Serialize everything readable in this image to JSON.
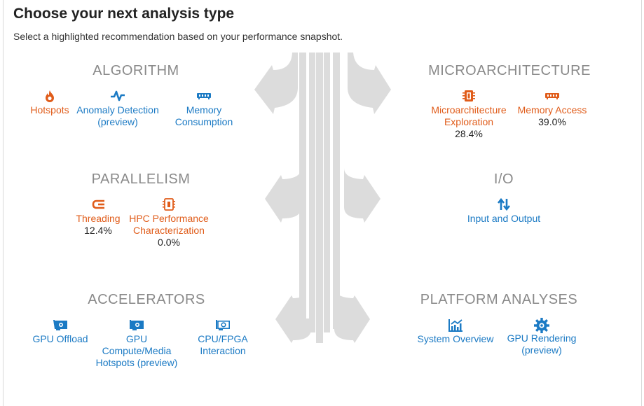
{
  "header": {
    "title": "Choose your next analysis type",
    "subtitle": "Select a highlighted recommendation based on your performance snapshot."
  },
  "colors": {
    "recommended": "#e05c1a",
    "standard": "#1b7ac4",
    "section": "#8a8a8a",
    "flow": "#dcdcdc"
  },
  "sections": {
    "algorithm": "ALGORITHM",
    "microarchitecture": "MICROARCHITECTURE",
    "parallelism": "PARALLELISM",
    "io": "I/O",
    "accelerators": "ACCELERATORS",
    "platform": "PLATFORM ANALYSES"
  },
  "items": {
    "hotspots": {
      "label": "Hotspots",
      "icon": "flame-icon"
    },
    "anomaly": {
      "label": "Anomaly Detection (preview)",
      "icon": "pulse-icon"
    },
    "memory_consumption": {
      "label": "Memory Consumption",
      "icon": "memory-chip-icon"
    },
    "microarch": {
      "label": "Microarchitecture Exploration",
      "value": "28.4%",
      "icon": "processor-icon"
    },
    "memory_access": {
      "label": "Memory Access",
      "value": "39.0%",
      "icon": "memory-chip-icon"
    },
    "threading": {
      "label": "Threading",
      "value": "12.4%",
      "icon": "threads-icon"
    },
    "hpc": {
      "label": "HPC Performance Characterization",
      "value": "0.0%",
      "icon": "processor-icon"
    },
    "io": {
      "label": "Input and Output",
      "icon": "up-down-arrows-icon"
    },
    "gpu_offload": {
      "label": "GPU Offload",
      "icon": "gpu-card-icon"
    },
    "gpu_compute": {
      "label": "GPU Compute/Media Hotspots (preview)",
      "icon": "gpu-card-icon"
    },
    "cpu_fpga": {
      "label": "CPU/FPGA Interaction",
      "icon": "fpga-card-icon"
    },
    "system_overview": {
      "label": "System Overview",
      "icon": "bar-chart-icon"
    },
    "gpu_rendering": {
      "label": "GPU Rendering (preview)",
      "icon": "gear-icon"
    }
  }
}
